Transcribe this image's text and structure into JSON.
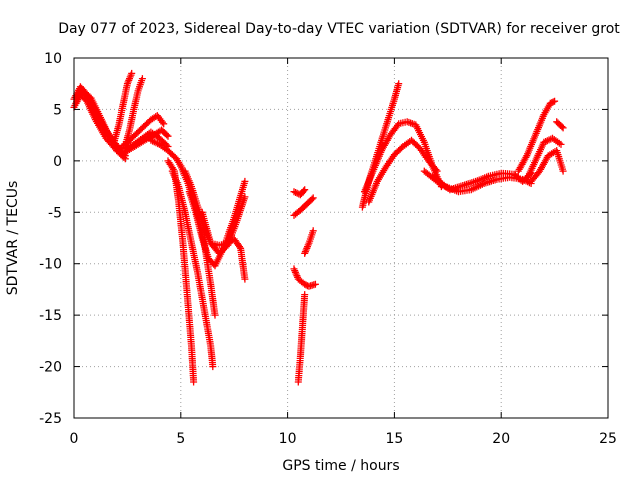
{
  "chart_data": {
    "type": "scatter",
    "title": "Day 077 of 2023, Sidereal Day-to-day VTEC variation (SDTVAR) for receiver grot",
    "xlabel": "GPS time / hours",
    "ylabel": "SDTVAR / TECUs",
    "xlim": [
      0,
      25
    ],
    "ylim": [
      -25,
      10
    ],
    "xticks": [
      0,
      5,
      10,
      15,
      20,
      25
    ],
    "yticks": [
      -25,
      -20,
      -15,
      -10,
      -5,
      0,
      5,
      10
    ],
    "grid": true,
    "marker": "plus",
    "color": "#ff0000",
    "series": [
      {
        "x": [
          0.0,
          0.3,
          0.6,
          1.0,
          1.5,
          2.0,
          2.4
        ],
        "y": [
          6.0,
          7.2,
          6.5,
          4.8,
          3.0,
          1.5,
          0.5
        ]
      },
      {
        "x": [
          0.0,
          0.3,
          0.6,
          1.0,
          1.5,
          2.0,
          2.4
        ],
        "y": [
          5.2,
          6.5,
          5.8,
          4.0,
          2.2,
          1.0,
          0.2
        ]
      },
      {
        "x": [
          0.1,
          0.4,
          0.8,
          1.2,
          1.6,
          2.0
        ],
        "y": [
          5.6,
          6.8,
          6.1,
          4.4,
          2.6,
          1.2
        ]
      },
      {
        "x": [
          1.9,
          2.1,
          2.3,
          2.5,
          2.7
        ],
        "y": [
          2.0,
          3.5,
          5.5,
          7.5,
          8.5
        ]
      },
      {
        "x": [
          2.4,
          2.6,
          2.8,
          3.0,
          3.2
        ],
        "y": [
          1.5,
          3.0,
          5.0,
          6.8,
          8.0
        ]
      },
      {
        "x": [
          2.0,
          2.4,
          2.8,
          3.2,
          3.6,
          3.9,
          4.2
        ],
        "y": [
          1.0,
          1.6,
          2.4,
          3.2,
          4.0,
          4.4,
          3.6
        ]
      },
      {
        "x": [
          2.2,
          2.6,
          3.0,
          3.4,
          3.8,
          4.1,
          4.4
        ],
        "y": [
          0.6,
          1.1,
          1.6,
          2.1,
          2.6,
          3.0,
          2.4
        ]
      },
      {
        "x": [
          2.4,
          2.8,
          3.2,
          3.6,
          4.0,
          4.4
        ],
        "y": [
          1.2,
          1.6,
          2.2,
          2.8,
          2.2,
          1.4
        ]
      },
      {
        "x": [
          3.6,
          4.0,
          4.4,
          4.8,
          5.0
        ],
        "y": [
          2.0,
          1.6,
          1.0,
          0.2,
          -0.5
        ]
      },
      {
        "x": [
          4.4,
          4.7,
          4.9,
          5.1,
          5.3,
          5.5,
          5.6
        ],
        "y": [
          0.0,
          -1.0,
          -4.0,
          -8.0,
          -13.0,
          -18.0,
          -21.5
        ]
      },
      {
        "x": [
          4.6,
          4.9,
          5.2,
          5.5,
          5.8,
          6.1,
          6.4,
          6.5
        ],
        "y": [
          -1.0,
          -2.5,
          -5.0,
          -8.0,
          -11.0,
          -14.5,
          -18.0,
          -20.0
        ]
      },
      {
        "x": [
          5.0,
          5.3,
          5.7,
          6.1,
          6.4,
          6.6
        ],
        "y": [
          -0.5,
          -2.0,
          -4.5,
          -8.0,
          -12.0,
          -15.0
        ]
      },
      {
        "x": [
          5.2,
          5.5,
          5.8,
          6.1,
          6.4,
          6.8,
          7.2,
          7.6,
          8.0
        ],
        "y": [
          -1.0,
          -2.5,
          -4.5,
          -6.5,
          -8.0,
          -9.0,
          -8.2,
          -6.0,
          -3.5
        ]
      },
      {
        "x": [
          5.4,
          5.7,
          6.0,
          6.3,
          6.6,
          7.0,
          7.5,
          8.0
        ],
        "y": [
          -3.0,
          -5.0,
          -7.5,
          -9.5,
          -10.2,
          -8.5,
          -5.5,
          -2.0
        ]
      },
      {
        "x": [
          6.0,
          6.4,
          6.8,
          7.2,
          7.5,
          7.8,
          8.0
        ],
        "y": [
          -5.0,
          -8.0,
          -8.2,
          -8.0,
          -7.6,
          -8.5,
          -11.5
        ]
      },
      {
        "x": [
          10.3,
          10.6,
          10.8
        ],
        "y": [
          -3.0,
          -3.3,
          -2.8
        ]
      },
      {
        "x": [
          10.3,
          10.6,
          10.9,
          11.2
        ],
        "y": [
          -5.3,
          -4.8,
          -4.2,
          -3.6
        ]
      },
      {
        "x": [
          10.8,
          11.0,
          11.2
        ],
        "y": [
          -9.0,
          -8.0,
          -6.8
        ]
      },
      {
        "x": [
          10.3,
          10.5,
          10.8,
          11.0,
          11.3
        ],
        "y": [
          -10.5,
          -11.5,
          -12.0,
          -12.2,
          -12.0
        ]
      },
      {
        "x": [
          10.5,
          10.6,
          10.7,
          10.8
        ],
        "y": [
          -21.5,
          -19.0,
          -16.0,
          -13.0
        ]
      },
      {
        "x": [
          13.5,
          13.8,
          14.1,
          14.4,
          14.7,
          15.0,
          15.2
        ],
        "y": [
          -4.5,
          -2.0,
          0.0,
          2.0,
          4.0,
          6.0,
          7.5
        ]
      },
      {
        "x": [
          13.6,
          14.0,
          14.4,
          14.8,
          15.2,
          15.6,
          16.0,
          16.4,
          16.8,
          17.2
        ],
        "y": [
          -3.0,
          -1.0,
          1.0,
          2.5,
          3.6,
          3.8,
          3.5,
          1.8,
          -0.6,
          -2.5
        ]
      },
      {
        "x": [
          13.8,
          14.2,
          14.6,
          15.0,
          15.4,
          15.8,
          16.2,
          16.6,
          17.0
        ],
        "y": [
          -4.0,
          -2.0,
          -0.6,
          0.6,
          1.4,
          2.0,
          1.2,
          0.0,
          -1.0
        ]
      },
      {
        "x": [
          16.4,
          17.0,
          17.6,
          18.2,
          18.8,
          19.4,
          20.0,
          20.6,
          21.0,
          21.4
        ],
        "y": [
          -1.0,
          -2.0,
          -2.8,
          -2.4,
          -2.0,
          -1.5,
          -1.2,
          -1.3,
          -2.0,
          -1.2
        ]
      },
      {
        "x": [
          16.8,
          17.4,
          18.0,
          18.6,
          19.2,
          19.8,
          20.4,
          21.0,
          21.4
        ],
        "y": [
          -1.5,
          -2.5,
          -3.0,
          -2.8,
          -2.2,
          -1.8,
          -1.6,
          -1.8,
          -2.2
        ]
      },
      {
        "x": [
          20.8,
          21.2,
          21.6,
          22.0,
          22.3,
          22.5
        ],
        "y": [
          -1.0,
          0.5,
          2.5,
          4.5,
          5.6,
          5.8
        ]
      },
      {
        "x": [
          21.2,
          21.6,
          22.0,
          22.4,
          22.8
        ],
        "y": [
          -1.8,
          0.0,
          1.8,
          2.2,
          1.6
        ]
      },
      {
        "x": [
          21.4,
          21.8,
          22.2,
          22.6,
          22.9
        ],
        "y": [
          -2.0,
          -1.0,
          0.5,
          1.0,
          -1.0
        ]
      },
      {
        "x": [
          22.6,
          22.9
        ],
        "y": [
          3.8,
          3.2
        ]
      }
    ]
  }
}
